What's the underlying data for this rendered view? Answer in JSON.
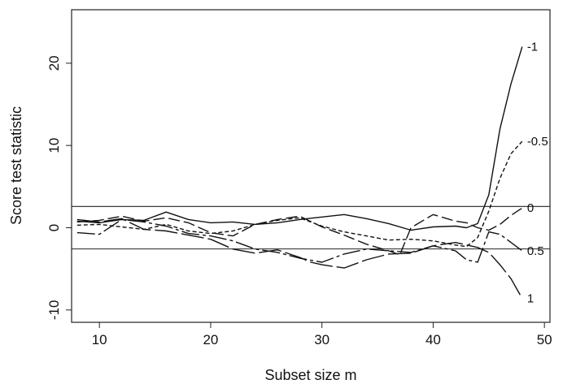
{
  "chart_data": {
    "type": "line",
    "title": "",
    "xlabel": "Subset size m",
    "ylabel": "Score test statistic",
    "xlim": [
      7.5,
      50.5
    ],
    "ylim": [
      -11.5,
      26.5
    ],
    "xticks": [
      10,
      20,
      30,
      40,
      50
    ],
    "yticks": [
      -10,
      0,
      10,
      20
    ],
    "grid": false,
    "legend": "none",
    "hlines": [
      2.58,
      -2.58
    ],
    "series": [
      {
        "name": "-1",
        "dash": "",
        "x": [
          8,
          10,
          12,
          14,
          16,
          18,
          20,
          22,
          24,
          26,
          28,
          30,
          32,
          34,
          36,
          38,
          40,
          42,
          43,
          44,
          45,
          46,
          47,
          48
        ],
        "y": [
          0.8,
          0.6,
          1.0,
          0.9,
          1.9,
          1.0,
          0.6,
          0.7,
          0.4,
          0.6,
          1.0,
          1.3,
          1.6,
          1.1,
          0.5,
          -0.3,
          0.1,
          0.2,
          0.0,
          0.5,
          4.0,
          12.0,
          17.5,
          22.0
        ]
      },
      {
        "name": "-0.5",
        "dash": "5,3",
        "x": [
          8,
          10,
          12,
          14,
          16,
          18,
          20,
          22,
          24,
          26,
          28,
          30,
          32,
          34,
          36,
          38,
          40,
          42,
          43,
          44,
          45,
          46,
          47,
          48
        ],
        "y": [
          0.3,
          0.4,
          0.1,
          -0.2,
          0.4,
          -0.4,
          -0.7,
          -0.4,
          0.4,
          0.9,
          1.2,
          0.2,
          -0.5,
          -1.0,
          -1.5,
          -1.4,
          -1.6,
          -2.1,
          -2.3,
          -1.2,
          2.0,
          6.0,
          9.0,
          10.5
        ]
      },
      {
        "name": "0",
        "dash": "14,5",
        "x": [
          8,
          10,
          12,
          14,
          16,
          18,
          20,
          22,
          24,
          26,
          28,
          30,
          32,
          34,
          36,
          37,
          38,
          40,
          41,
          42,
          43,
          44,
          45,
          46,
          47,
          48
        ],
        "y": [
          0.7,
          0.9,
          1.4,
          0.8,
          1.2,
          0.6,
          -0.6,
          -1.0,
          0.4,
          1.0,
          1.4,
          0.1,
          -0.9,
          -2.0,
          -2.8,
          -3.3,
          0.0,
          1.6,
          1.2,
          0.8,
          0.6,
          0.0,
          -0.3,
          0.4,
          1.5,
          2.4
        ]
      },
      {
        "name": "0.5",
        "dash": "22,4,4,4",
        "x": [
          8,
          10,
          12,
          14,
          16,
          18,
          20,
          22,
          24,
          26,
          28,
          30,
          32,
          34,
          36,
          38,
          40,
          42,
          43,
          44,
          45,
          46,
          47,
          48
        ],
        "y": [
          -0.6,
          -0.8,
          1.0,
          0.7,
          0.2,
          -0.7,
          -1.0,
          -1.6,
          -2.6,
          -3.0,
          -3.7,
          -4.2,
          -3.2,
          -2.6,
          -2.8,
          -3.0,
          -2.2,
          -2.8,
          -3.9,
          -4.2,
          -0.5,
          -0.8,
          -1.8,
          -2.8
        ]
      },
      {
        "name": "1",
        "dash": "28,5",
        "x": [
          8,
          10,
          12,
          14,
          16,
          18,
          20,
          22,
          24,
          26,
          28,
          29,
          30,
          32,
          34,
          36,
          38,
          40,
          42,
          44,
          45,
          46,
          47,
          48
        ],
        "y": [
          1.0,
          0.7,
          1.1,
          -0.2,
          -0.4,
          -0.9,
          -1.4,
          -2.6,
          -3.1,
          -2.7,
          -3.6,
          -4.2,
          -4.5,
          -4.9,
          -3.9,
          -3.2,
          -3.1,
          -2.2,
          -1.8,
          -2.4,
          -3.0,
          -4.5,
          -6.2,
          -8.6
        ]
      }
    ]
  }
}
